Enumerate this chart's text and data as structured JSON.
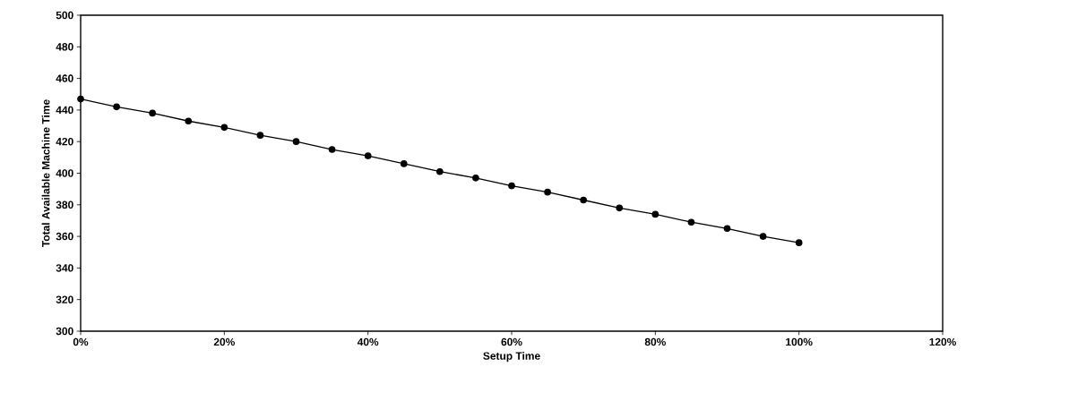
{
  "chart_data": {
    "type": "line",
    "xlabel": "Setup Time",
    "ylabel": "Total Available Machine Time",
    "x": [
      0,
      5,
      10,
      15,
      20,
      25,
      30,
      35,
      40,
      45,
      50,
      55,
      60,
      65,
      70,
      75,
      80,
      85,
      90,
      95,
      100
    ],
    "series": [
      {
        "color": "#000000",
        "values": [
          447,
          442,
          438,
          433,
          429,
          424,
          420,
          415,
          411,
          406,
          401,
          397,
          392,
          388,
          383,
          378,
          374,
          369,
          365,
          360,
          356
        ]
      }
    ],
    "xlim": [
      0,
      120
    ],
    "xticks": [
      {
        "value": 0,
        "label": "0%"
      },
      {
        "value": 20,
        "label": "20%"
      },
      {
        "value": 40,
        "label": "40%"
      },
      {
        "value": 60,
        "label": "60%"
      },
      {
        "value": 80,
        "label": "80%"
      },
      {
        "value": 100,
        "label": "100%"
      },
      {
        "value": 120,
        "label": "120%"
      }
    ],
    "ylim": [
      300,
      500
    ],
    "yticks": [
      300,
      320,
      340,
      360,
      380,
      400,
      420,
      440,
      460,
      480,
      500
    ],
    "marker": "circle",
    "line_style": "solid",
    "grid": false
  }
}
